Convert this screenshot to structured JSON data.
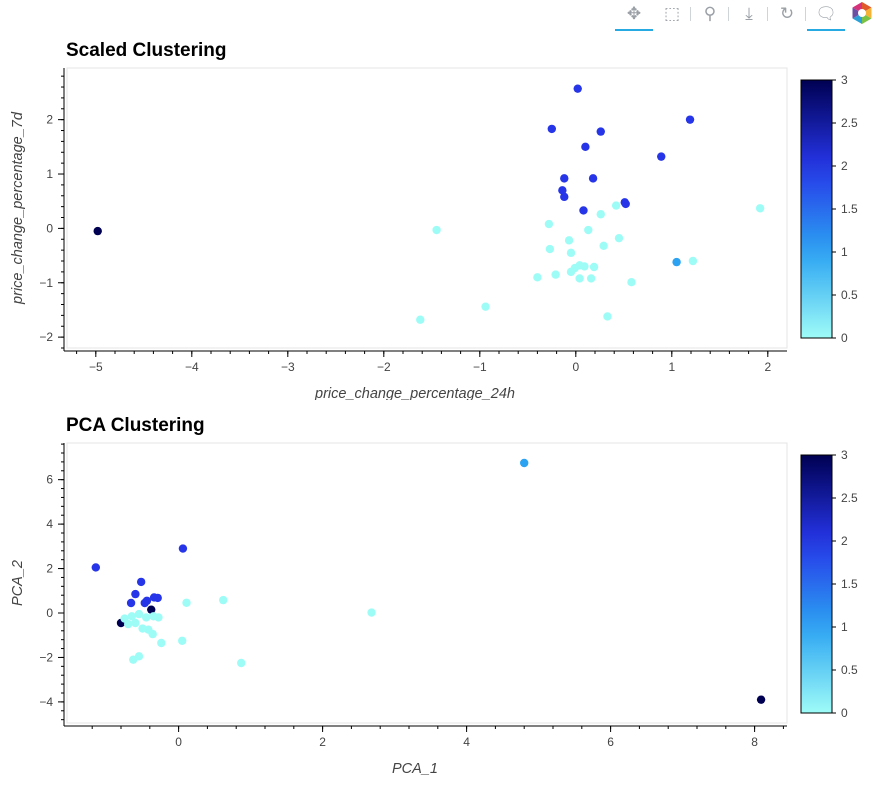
{
  "toolbar": {
    "tools": [
      {
        "name": "pan-icon",
        "glyph": "✥",
        "active": true
      },
      {
        "name": "box-zoom-icon",
        "glyph": "⬚",
        "active": false
      },
      {
        "name": "wheel-zoom-icon",
        "glyph": "⚲",
        "active": false
      },
      {
        "name": "save-icon",
        "glyph": "⤓",
        "active": false
      },
      {
        "name": "reset-icon",
        "glyph": "↻",
        "active": false
      },
      {
        "name": "hover-icon",
        "glyph": "🗨",
        "active": true
      }
    ]
  },
  "colors": {
    "palette_low": "#9efcf7",
    "palette_mid": "#2ba3f2",
    "palette_high": "#2635e8",
    "palette_top": "#000052"
  },
  "chart_data": [
    {
      "type": "scatter",
      "title": "Scaled Clustering",
      "xlabel": "price_change_percentage_24h",
      "ylabel": "price_change_percentage_7d",
      "xlim": [
        -5.3,
        2.2
      ],
      "ylim": [
        -2.2,
        2.95
      ],
      "xticks": [
        -5,
        -4,
        -3,
        -2,
        -1,
        0,
        1,
        2
      ],
      "yticks": [
        -2,
        -1,
        0,
        1,
        2
      ],
      "colorbar": {
        "range": [
          0,
          3
        ],
        "ticks": [
          0,
          0.5,
          1,
          1.5,
          2,
          2.5,
          3
        ]
      },
      "points": [
        {
          "x": -4.98,
          "y": -0.05,
          "c": 3
        },
        {
          "x": 0.02,
          "y": 2.57,
          "c": 2
        },
        {
          "x": -0.25,
          "y": 1.83,
          "c": 2
        },
        {
          "x": 0.26,
          "y": 1.78,
          "c": 2
        },
        {
          "x": 1.19,
          "y": 2.0,
          "c": 2
        },
        {
          "x": 0.1,
          "y": 1.5,
          "c": 2
        },
        {
          "x": 0.89,
          "y": 1.32,
          "c": 2
        },
        {
          "x": -0.12,
          "y": 0.92,
          "c": 2
        },
        {
          "x": 0.18,
          "y": 0.92,
          "c": 2
        },
        {
          "x": -0.14,
          "y": 0.7,
          "c": 2
        },
        {
          "x": -0.12,
          "y": 0.58,
          "c": 2
        },
        {
          "x": 0.51,
          "y": 0.48,
          "c": 2
        },
        {
          "x": 0.52,
          "y": 0.45,
          "c": 2
        },
        {
          "x": 0.08,
          "y": 0.33,
          "c": 2
        },
        {
          "x": 1.05,
          "y": -0.62,
          "c": 1
        },
        {
          "x": -1.45,
          "y": -0.03,
          "c": 0
        },
        {
          "x": -0.28,
          "y": 0.08,
          "c": 0
        },
        {
          "x": 0.42,
          "y": 0.42,
          "c": 0
        },
        {
          "x": 0.26,
          "y": 0.26,
          "c": 0
        },
        {
          "x": 1.92,
          "y": 0.37,
          "c": 0
        },
        {
          "x": 0.13,
          "y": -0.03,
          "c": 0
        },
        {
          "x": -0.07,
          "y": -0.22,
          "c": 0
        },
        {
          "x": 0.45,
          "y": -0.18,
          "c": 0
        },
        {
          "x": 0.29,
          "y": -0.32,
          "c": 0
        },
        {
          "x": -0.27,
          "y": -0.38,
          "c": 0
        },
        {
          "x": -0.05,
          "y": -0.45,
          "c": 0
        },
        {
          "x": 0.04,
          "y": -0.68,
          "c": 0
        },
        {
          "x": 0.09,
          "y": -0.7,
          "c": 0
        },
        {
          "x": 0.19,
          "y": -0.71,
          "c": 0
        },
        {
          "x": -0.01,
          "y": -0.73,
          "c": 0
        },
        {
          "x": -0.05,
          "y": -0.8,
          "c": 0
        },
        {
          "x": -0.21,
          "y": -0.85,
          "c": 0
        },
        {
          "x": -0.4,
          "y": -0.9,
          "c": 0
        },
        {
          "x": 0.04,
          "y": -0.92,
          "c": 0
        },
        {
          "x": 0.16,
          "y": -0.92,
          "c": 0
        },
        {
          "x": 0.58,
          "y": -0.99,
          "c": 0
        },
        {
          "x": 1.22,
          "y": -0.6,
          "c": 0
        },
        {
          "x": -0.94,
          "y": -1.44,
          "c": 0
        },
        {
          "x": 0.33,
          "y": -1.62,
          "c": 0
        },
        {
          "x": -1.62,
          "y": -1.68,
          "c": 0
        }
      ]
    },
    {
      "type": "scatter",
      "title": "PCA Clustering",
      "xlabel": "PCA_1",
      "ylabel": "PCA_2",
      "xlim": [
        -1.55,
        8.45
      ],
      "ylim": [
        -4.95,
        7.65
      ],
      "xticks": [
        0,
        2,
        4,
        6,
        8
      ],
      "yticks": [
        -4,
        -2,
        0,
        2,
        4,
        6
      ],
      "colorbar": {
        "range": [
          0,
          3
        ],
        "ticks": [
          0,
          0.5,
          1,
          1.5,
          2,
          2.5,
          3
        ]
      },
      "points": [
        {
          "x": 8.09,
          "y": -3.9,
          "c": 3
        },
        {
          "x": -0.8,
          "y": -0.45,
          "c": 3
        },
        {
          "x": -0.38,
          "y": 0.15,
          "c": 3
        },
        {
          "x": 4.8,
          "y": 6.75,
          "c": 1
        },
        {
          "x": -1.15,
          "y": 2.05,
          "c": 2
        },
        {
          "x": 0.06,
          "y": 2.9,
          "c": 2
        },
        {
          "x": -0.52,
          "y": 1.4,
          "c": 2
        },
        {
          "x": -0.6,
          "y": 0.85,
          "c": 2
        },
        {
          "x": -0.66,
          "y": 0.45,
          "c": 2
        },
        {
          "x": -0.44,
          "y": 0.55,
          "c": 2
        },
        {
          "x": -0.47,
          "y": 0.45,
          "c": 2
        },
        {
          "x": -0.34,
          "y": 0.7,
          "c": 2
        },
        {
          "x": -0.29,
          "y": 0.68,
          "c": 2
        },
        {
          "x": 0.62,
          "y": 0.58,
          "c": 0
        },
        {
          "x": 0.11,
          "y": 0.46,
          "c": 0
        },
        {
          "x": 2.68,
          "y": 0.02,
          "c": 0
        },
        {
          "x": -0.75,
          "y": -0.25,
          "c": 0
        },
        {
          "x": -0.65,
          "y": -0.15,
          "c": 0
        },
        {
          "x": -0.55,
          "y": -0.05,
          "c": 0
        },
        {
          "x": -0.45,
          "y": -0.2,
          "c": 0
        },
        {
          "x": -0.35,
          "y": -0.15,
          "c": 0
        },
        {
          "x": -0.28,
          "y": -0.2,
          "c": 0
        },
        {
          "x": -0.7,
          "y": -0.5,
          "c": 0
        },
        {
          "x": -0.6,
          "y": -0.45,
          "c": 0
        },
        {
          "x": -0.5,
          "y": -0.7,
          "c": 0
        },
        {
          "x": -0.42,
          "y": -0.75,
          "c": 0
        },
        {
          "x": -0.36,
          "y": -0.95,
          "c": 0
        },
        {
          "x": -0.24,
          "y": -1.35,
          "c": 0
        },
        {
          "x": 0.05,
          "y": -1.25,
          "c": 0
        },
        {
          "x": -0.55,
          "y": -1.95,
          "c": 0
        },
        {
          "x": -0.63,
          "y": -2.1,
          "c": 0
        },
        {
          "x": 0.87,
          "y": -2.25,
          "c": 0
        }
      ]
    }
  ]
}
